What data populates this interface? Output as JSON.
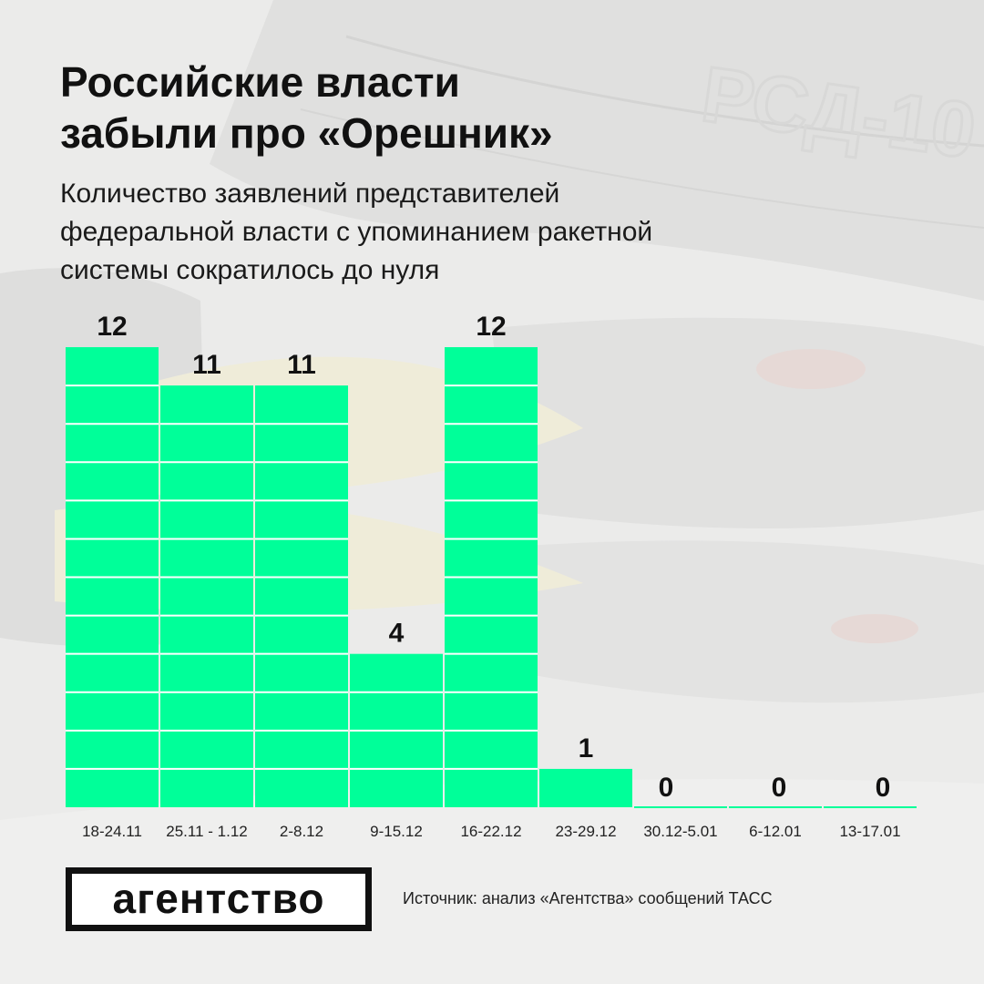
{
  "header": {
    "title_lines": [
      "Российские власти",
      "забыли про «Орешник»"
    ],
    "subtitle_lines": [
      "Количество заявлений представителей",
      "федеральной власти с упоминанием ракетной",
      "системы сократилось до нуля"
    ]
  },
  "background": {
    "photo_label": "РСД-10"
  },
  "chart_data": {
    "type": "bar",
    "title": "Российские власти забыли про «Орешник»",
    "subtitle": "Количество заявлений представителей федеральной власти с упоминанием ракетной системы сократилось до нуля",
    "categories": [
      "18-24.11",
      "25.11 - 1.12",
      "2-8.12",
      "9-15.12",
      "16-22.12",
      "23-29.12",
      "30.12-5.01",
      "6-12.01",
      "13-17.01"
    ],
    "values": [
      12,
      11,
      11,
      4,
      12,
      1,
      0,
      0,
      0
    ],
    "value_labels": [
      "12",
      "11",
      "11",
      "4",
      "12",
      "1",
      "0",
      "0",
      "0"
    ],
    "ylim": [
      0,
      12
    ],
    "grid": false,
    "data_labels": true,
    "bar_color": "#00ff99",
    "bar_segment_color": "#ffffff"
  },
  "footer": {
    "logo_text": "агентство",
    "source": "Источник: анализ «Агентства» сообщений ТАСС"
  },
  "colors": {
    "accent": "#00ff99",
    "text": "#111111"
  }
}
